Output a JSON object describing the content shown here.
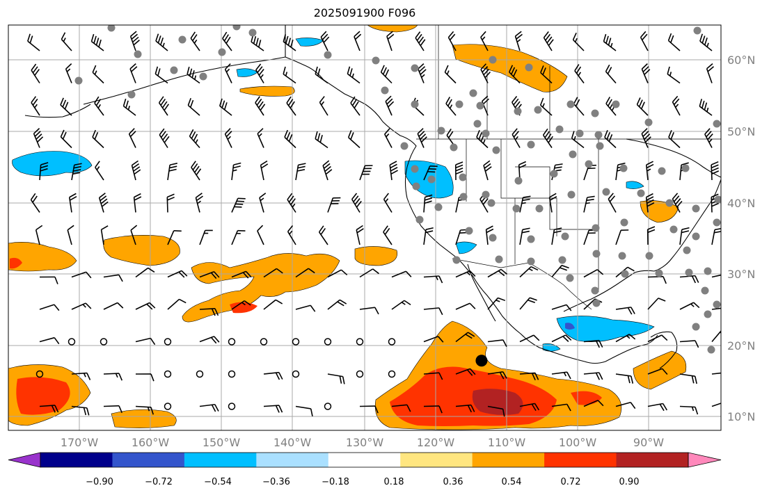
{
  "title": "2025091900 F096",
  "map": {
    "lon_range": [
      -180,
      -80
    ],
    "lat_range": [
      8,
      65
    ],
    "ocean_color": "#ffffff",
    "coast_color": "#000000",
    "grid_color": "#a8a8a8",
    "lat_labels": [
      {
        "lat": 60,
        "text": "60°N"
      },
      {
        "lat": 50,
        "text": "50°N"
      },
      {
        "lat": 40,
        "text": "40°N"
      },
      {
        "lat": 30,
        "text": "30°N"
      },
      {
        "lat": 20,
        "text": "20°N"
      },
      {
        "lat": 10,
        "text": "10°N"
      }
    ],
    "lon_labels": [
      {
        "lon": -170,
        "text": "170°W"
      },
      {
        "lon": -160,
        "text": "160°W"
      },
      {
        "lon": -150,
        "text": "150°W"
      },
      {
        "lon": -140,
        "text": "140°W"
      },
      {
        "lon": -130,
        "text": "130°W"
      },
      {
        "lon": -120,
        "text": "120°W"
      },
      {
        "lon": -110,
        "text": "110°W"
      },
      {
        "lon": -100,
        "text": "100°W"
      },
      {
        "lon": -90,
        "text": "90°W"
      }
    ],
    "storm_center": {
      "lon": -113.6,
      "lat": 17.8
    }
  },
  "colorbar": {
    "colors": [
      "#9933cc",
      "#00008b",
      "#3355cc",
      "#00bfff",
      "#aae0ff",
      "#ffffff",
      "#ffe680",
      "#ffa500",
      "#ff3300",
      "#b22222",
      "#ff88bb"
    ],
    "tick_labels": [
      "−0.90",
      "−0.72",
      "−0.54",
      "−0.36",
      "−0.18",
      "0.18",
      "0.36",
      "0.54",
      "0.72",
      "0.90"
    ]
  },
  "field_levels": {
    "neg_low": "#00bfff",
    "neg_mid": "#3355cc",
    "pos_low": "#ffa500",
    "pos_mid": "#ff3300",
    "pos_high": "#b22222"
  }
}
